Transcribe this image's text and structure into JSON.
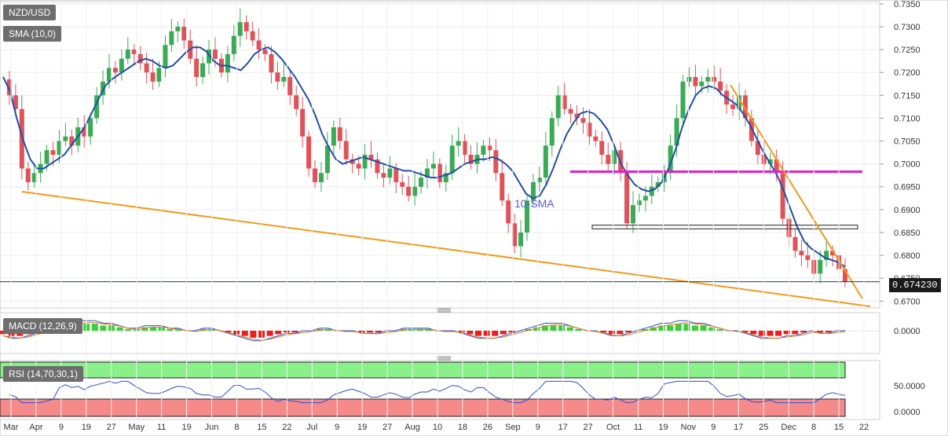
{
  "chart_data": {
    "type": "candlestick",
    "instrument": "NZD/USD",
    "indicator_label": "SMA (10,0)",
    "last_price": "0.674230",
    "annotation": "10-SMA",
    "price_axis": {
      "ticks": [
        "0.7350",
        "0.7300",
        "0.7250",
        "0.7200",
        "0.7150",
        "0.7100",
        "0.7050",
        "0.7000",
        "0.6950",
        "0.6900",
        "0.6850",
        "0.6800",
        "0.6750",
        "0.6700"
      ],
      "range": [
        0.6685,
        0.7355
      ]
    },
    "x_ticks": [
      "Mar",
      "Apr",
      "9",
      "19",
      "27",
      "May",
      "11",
      "19",
      "Jun",
      "8",
      "15",
      "22",
      "Jul",
      "9",
      "19",
      "27",
      "Aug",
      "10",
      "18",
      "26",
      "Sep",
      "9",
      "17",
      "27",
      "Oct",
      "11",
      "19",
      "Nov",
      "9",
      "17",
      "25",
      "Dec",
      "8",
      "15",
      "22"
    ],
    "price_series": [
      0.7185,
      0.715,
      0.712,
      0.699,
      0.696,
      0.698,
      0.7,
      0.703,
      0.702,
      0.705,
      0.706,
      0.704,
      0.708,
      0.706,
      0.71,
      0.715,
      0.718,
      0.721,
      0.72,
      0.723,
      0.725,
      0.724,
      0.722,
      0.72,
      0.718,
      0.721,
      0.726,
      0.729,
      0.73,
      0.727,
      0.723,
      0.719,
      0.722,
      0.725,
      0.723,
      0.72,
      0.724,
      0.728,
      0.731,
      0.729,
      0.727,
      0.725,
      0.724,
      0.72,
      0.718,
      0.719,
      0.715,
      0.712,
      0.706,
      0.699,
      0.696,
      0.698,
      0.704,
      0.708,
      0.705,
      0.701,
      0.7,
      0.699,
      0.702,
      0.701,
      0.698,
      0.697,
      0.699,
      0.696,
      0.695,
      0.693,
      0.695,
      0.697,
      0.699,
      0.7,
      0.696,
      0.698,
      0.704,
      0.705,
      0.702,
      0.7,
      0.702,
      0.704,
      0.703,
      0.698,
      0.692,
      0.687,
      0.682,
      0.685,
      0.692,
      0.696,
      0.697,
      0.704,
      0.71,
      0.715,
      0.712,
      0.711,
      0.71,
      0.709,
      0.706,
      0.705,
      0.702,
      0.7,
      0.703,
      0.698,
      0.687,
      0.691,
      0.692,
      0.693,
      0.695,
      0.696,
      0.698,
      0.704,
      0.71,
      0.718,
      0.719,
      0.717,
      0.718,
      0.719,
      0.718,
      0.716,
      0.713,
      0.712,
      0.715,
      0.71,
      0.705,
      0.702,
      0.7,
      0.701,
      0.698,
      0.688,
      0.684,
      0.681,
      0.68,
      0.679,
      0.676,
      0.679,
      0.681,
      0.68,
      0.677,
      0.6742
    ],
    "sma_series": [
      0.719,
      0.716,
      0.71,
      0.705,
      0.701,
      0.699,
      0.699,
      0.7,
      0.701,
      0.702,
      0.704,
      0.706,
      0.708,
      0.711,
      0.714,
      0.717,
      0.7185,
      0.7195,
      0.7205,
      0.7215,
      0.7225,
      0.723,
      0.7225,
      0.7215,
      0.721,
      0.7215,
      0.723,
      0.7245,
      0.7255,
      0.7255,
      0.7245,
      0.7225,
      0.7215,
      0.7215,
      0.721,
      0.7205,
      0.722,
      0.724,
      0.725,
      0.7255,
      0.7245,
      0.723,
      0.721,
      0.719,
      0.7165,
      0.714,
      0.7105,
      0.7065,
      0.7035,
      0.701,
      0.7,
      0.7005,
      0.701,
      0.7015,
      0.701,
      0.7005,
      0.7,
      0.6995,
      0.699,
      0.6985,
      0.6985,
      0.698,
      0.6975,
      0.697,
      0.697,
      0.6975,
      0.698,
      0.699,
      0.7,
      0.7005,
      0.701,
      0.701,
      0.7015,
      0.701,
      0.7,
      0.6985,
      0.696,
      0.6935,
      0.6925,
      0.693,
      0.6955,
      0.699,
      0.703,
      0.7065,
      0.709,
      0.711,
      0.7115,
      0.711,
      0.7095,
      0.7075,
      0.704,
      0.7,
      0.6975,
      0.6955,
      0.6945,
      0.694,
      0.6945,
      0.696,
      0.699,
      0.703,
      0.708,
      0.712,
      0.715,
      0.7165,
      0.717,
      0.7165,
      0.715,
      0.714,
      0.713,
      0.711,
      0.7085,
      0.7055,
      0.7025,
      0.7,
      0.6975,
      0.694,
      0.69,
      0.686,
      0.683,
      0.6815,
      0.6805,
      0.6795,
      0.679,
      0.6785,
      0.6775
    ],
    "horizontal_line_level": 0.6983,
    "support_zone": [
      0.6858,
      0.6866
    ],
    "macd": {
      "label": "MACD (12,26,9)",
      "zero_tick": "0.0000",
      "histogram": [
        -2,
        -3,
        -3,
        -2,
        -1,
        0,
        1,
        2,
        3,
        4,
        4,
        4,
        3,
        3,
        2,
        1,
        1,
        2,
        2,
        2,
        1,
        1,
        0,
        0,
        1,
        1,
        0,
        -1,
        -2,
        -3,
        -4,
        -4,
        -3,
        -2,
        -1,
        -1,
        0,
        0,
        1,
        1,
        0,
        0,
        0,
        -1,
        -1,
        -1,
        0,
        0,
        1,
        1,
        1,
        1,
        0,
        0,
        0,
        -1,
        -2,
        -3,
        -3,
        -3,
        -2,
        -1,
        0,
        1,
        2,
        3,
        3,
        3,
        2,
        1,
        0,
        0,
        -1,
        -2,
        -2,
        -1,
        0,
        1,
        2,
        3,
        3,
        4,
        4,
        3,
        3,
        2,
        1,
        0,
        0,
        -1,
        -2,
        -3,
        -3,
        -3,
        -2,
        -2,
        -1,
        0,
        -1,
        -1,
        0,
        0
      ]
    },
    "rsi": {
      "label": "RSI (14,70,30,1)",
      "ticks": [
        "50.0000",
        "0.0000"
      ],
      "overbought": 70,
      "oversold": 30
    }
  }
}
